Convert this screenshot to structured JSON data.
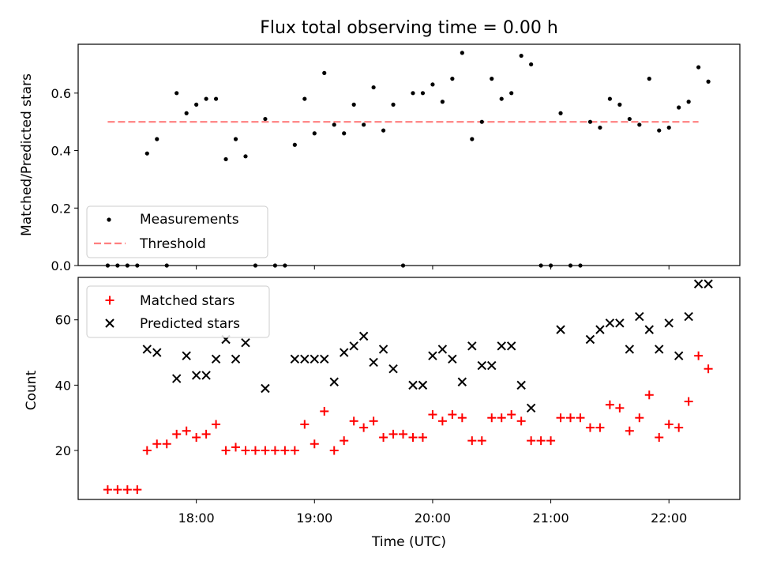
{
  "chart_data": {
    "title": "Flux total observing time = 0.00 h",
    "xlabel": "Time (UTC)",
    "xlim": [
      "17:00",
      "22:36"
    ],
    "xticks": [
      "18:00",
      "19:00",
      "20:00",
      "21:00",
      "22:00"
    ],
    "colors": {
      "measurements": "#000000",
      "threshold": "#ff7f7f",
      "matched": "#ff0000",
      "predicted": "#000000"
    },
    "panels": [
      {
        "type": "scatter",
        "ylabel": "Matched/Predicted stars",
        "ylim": [
          0,
          0.77
        ],
        "yticks": [
          "0.0",
          "0.2",
          "0.4",
          "0.6"
        ],
        "legend_position": "lower-left",
        "series": [
          {
            "name": "Measurements",
            "marker": "dot",
            "points": [
              [
                "17:15",
                0
              ],
              [
                "17:20",
                0
              ],
              [
                "17:25",
                0
              ],
              [
                "17:30",
                0
              ],
              [
                "17:35",
                0.39
              ],
              [
                "17:40",
                0.44
              ],
              [
                "17:45",
                0
              ],
              [
                "17:50",
                0.6
              ],
              [
                "17:55",
                0.53
              ],
              [
                "18:00",
                0.56
              ],
              [
                "18:05",
                0.58
              ],
              [
                "18:10",
                0.58
              ],
              [
                "18:15",
                0.37
              ],
              [
                "18:20",
                0.44
              ],
              [
                "18:25",
                0.38
              ],
              [
                "18:30",
                0
              ],
              [
                "18:35",
                0.51
              ],
              [
                "18:40",
                0
              ],
              [
                "18:45",
                0
              ],
              [
                "18:50",
                0.42
              ],
              [
                "18:55",
                0.58
              ],
              [
                "19:00",
                0.46
              ],
              [
                "19:05",
                0.67
              ],
              [
                "19:10",
                0.49
              ],
              [
                "19:15",
                0.46
              ],
              [
                "19:20",
                0.56
              ],
              [
                "19:25",
                0.49
              ],
              [
                "19:30",
                0.62
              ],
              [
                "19:35",
                0.47
              ],
              [
                "19:40",
                0.56
              ],
              [
                "19:45",
                0
              ],
              [
                "19:50",
                0.6
              ],
              [
                "19:55",
                0.6
              ],
              [
                "20:00",
                0.63
              ],
              [
                "20:05",
                0.57
              ],
              [
                "20:10",
                0.65
              ],
              [
                "20:15",
                0.74
              ],
              [
                "20:20",
                0.44
              ],
              [
                "20:25",
                0.5
              ],
              [
                "20:30",
                0.65
              ],
              [
                "20:35",
                0.58
              ],
              [
                "20:40",
                0.6
              ],
              [
                "20:45",
                0.73
              ],
              [
                "20:50",
                0.7
              ],
              [
                "20:55",
                0
              ],
              [
                "21:00",
                0
              ],
              [
                "21:05",
                0.53
              ],
              [
                "21:10",
                0
              ],
              [
                "21:15",
                0
              ],
              [
                "21:20",
                0.5
              ],
              [
                "21:25",
                0.48
              ],
              [
                "21:30",
                0.58
              ],
              [
                "21:35",
                0.56
              ],
              [
                "21:40",
                0.51
              ],
              [
                "21:45",
                0.49
              ],
              [
                "21:50",
                0.65
              ],
              [
                "21:55",
                0.47
              ],
              [
                "22:00",
                0.48
              ],
              [
                "22:05",
                0.55
              ],
              [
                "22:10",
                0.57
              ],
              [
                "22:15",
                0.69
              ],
              [
                "22:20",
                0.64
              ]
            ]
          },
          {
            "name": "Threshold",
            "line": "dashed",
            "x": [
              "17:15",
              "22:15"
            ],
            "y": 0.5
          }
        ]
      },
      {
        "type": "scatter",
        "ylabel": "Count",
        "ylim": [
          5,
          73
        ],
        "yticks": [
          "20",
          "40",
          "60"
        ],
        "legend_position": "top-left",
        "series": [
          {
            "name": "Matched stars",
            "marker": "plus",
            "points": [
              [
                "17:15",
                8
              ],
              [
                "17:20",
                8
              ],
              [
                "17:25",
                8
              ],
              [
                "17:30",
                8
              ],
              [
                "17:35",
                20
              ],
              [
                "17:40",
                22
              ],
              [
                "17:45",
                22
              ],
              [
                "17:50",
                25
              ],
              [
                "17:55",
                26
              ],
              [
                "18:00",
                24
              ],
              [
                "18:05",
                25
              ],
              [
                "18:10",
                28
              ],
              [
                "18:15",
                20
              ],
              [
                "18:20",
                21
              ],
              [
                "18:25",
                20
              ],
              [
                "18:30",
                20
              ],
              [
                "18:35",
                20
              ],
              [
                "18:40",
                20
              ],
              [
                "18:45",
                20
              ],
              [
                "18:50",
                20
              ],
              [
                "18:55",
                28
              ],
              [
                "19:00",
                22
              ],
              [
                "19:05",
                32
              ],
              [
                "19:10",
                20
              ],
              [
                "19:15",
                23
              ],
              [
                "19:20",
                29
              ],
              [
                "19:25",
                27
              ],
              [
                "19:30",
                29
              ],
              [
                "19:35",
                24
              ],
              [
                "19:40",
                25
              ],
              [
                "19:45",
                25
              ],
              [
                "19:50",
                24
              ],
              [
                "19:55",
                24
              ],
              [
                "20:00",
                31
              ],
              [
                "20:05",
                29
              ],
              [
                "20:10",
                31
              ],
              [
                "20:15",
                30
              ],
              [
                "20:20",
                23
              ],
              [
                "20:25",
                23
              ],
              [
                "20:30",
                30
              ],
              [
                "20:35",
                30
              ],
              [
                "20:40",
                31
              ],
              [
                "20:45",
                29
              ],
              [
                "20:50",
                23
              ],
              [
                "20:55",
                23
              ],
              [
                "21:00",
                23
              ],
              [
                "21:05",
                30
              ],
              [
                "21:10",
                30
              ],
              [
                "21:15",
                30
              ],
              [
                "21:20",
                27
              ],
              [
                "21:25",
                27
              ],
              [
                "21:30",
                34
              ],
              [
                "21:35",
                33
              ],
              [
                "21:40",
                26
              ],
              [
                "21:45",
                30
              ],
              [
                "21:50",
                37
              ],
              [
                "21:55",
                24
              ],
              [
                "22:00",
                28
              ],
              [
                "22:05",
                27
              ],
              [
                "22:10",
                35
              ],
              [
                "22:15",
                49
              ],
              [
                "22:20",
                45
              ]
            ]
          },
          {
            "name": "Predicted stars",
            "marker": "x",
            "points": [
              [
                "17:35",
                51
              ],
              [
                "17:40",
                50
              ],
              [
                "17:50",
                42
              ],
              [
                "17:55",
                49
              ],
              [
                "18:00",
                43
              ],
              [
                "18:05",
                43
              ],
              [
                "18:10",
                48
              ],
              [
                "18:15",
                54
              ],
              [
                "18:20",
                48
              ],
              [
                "18:25",
                53
              ],
              [
                "18:35",
                39
              ],
              [
                "18:50",
                48
              ],
              [
                "18:55",
                48
              ],
              [
                "19:00",
                48
              ],
              [
                "19:05",
                48
              ],
              [
                "19:10",
                41
              ],
              [
                "19:15",
                50
              ],
              [
                "19:20",
                52
              ],
              [
                "19:25",
                55
              ],
              [
                "19:30",
                47
              ],
              [
                "19:35",
                51
              ],
              [
                "19:40",
                45
              ],
              [
                "19:50",
                40
              ],
              [
                "19:55",
                40
              ],
              [
                "20:00",
                49
              ],
              [
                "20:05",
                51
              ],
              [
                "20:10",
                48
              ],
              [
                "20:15",
                41
              ],
              [
                "20:20",
                52
              ],
              [
                "20:25",
                46
              ],
              [
                "20:30",
                46
              ],
              [
                "20:35",
                52
              ],
              [
                "20:40",
                52
              ],
              [
                "20:45",
                40
              ],
              [
                "20:50",
                33
              ],
              [
                "21:05",
                57
              ],
              [
                "21:20",
                54
              ],
              [
                "21:25",
                57
              ],
              [
                "21:30",
                59
              ],
              [
                "21:35",
                59
              ],
              [
                "21:40",
                51
              ],
              [
                "21:45",
                61
              ],
              [
                "21:50",
                57
              ],
              [
                "21:55",
                51
              ],
              [
                "22:00",
                59
              ],
              [
                "22:05",
                49
              ],
              [
                "22:10",
                61
              ],
              [
                "22:15",
                71
              ],
              [
                "22:20",
                71
              ]
            ]
          }
        ]
      }
    ]
  }
}
